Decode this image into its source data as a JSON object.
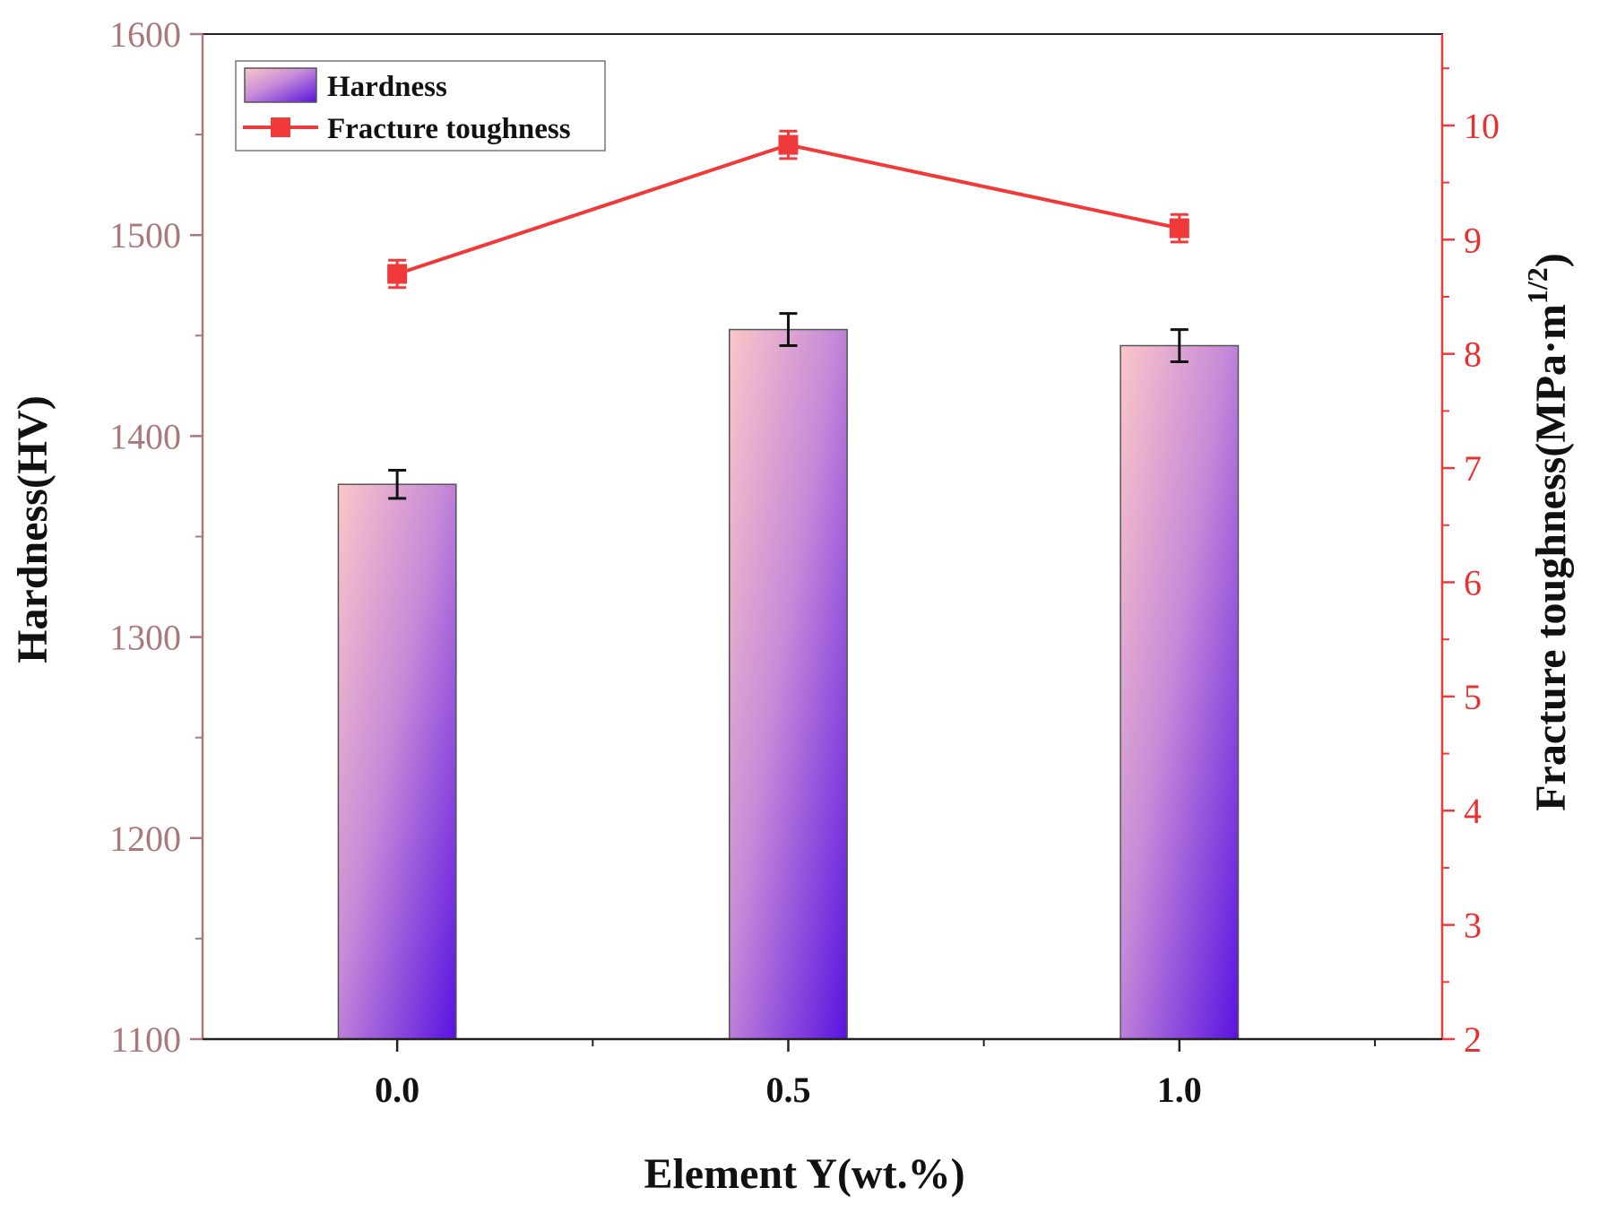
{
  "chart_data": {
    "type": "bar+line",
    "title": "",
    "xlabel": "Element Y(wt.%)",
    "ylabel_left": "Hardness(HV)",
    "ylabel_right": "Fracture toughness(MPa·m",
    "ylabel_right_sup": "1/2",
    "ylabel_right_close": ")",
    "categories": [
      "0.0",
      "0.5",
      "1.0"
    ],
    "ylim_left": [
      1100,
      1600
    ],
    "yticks_left": [
      "1100",
      "1200",
      "1300",
      "1400",
      "1500",
      "1600"
    ],
    "ylim_right": [
      2,
      10.8
    ],
    "yticks_right": [
      "2",
      "3",
      "4",
      "5",
      "6",
      "7",
      "8",
      "9",
      "10"
    ],
    "legend_position": "top-left",
    "series": [
      {
        "name": "Hardness",
        "type": "bar",
        "axis": "left",
        "values": [
          1376,
          1453,
          1445
        ],
        "errors": [
          7,
          8,
          8
        ]
      },
      {
        "name": "Fracture toughness",
        "type": "line",
        "axis": "right",
        "values": [
          8.7,
          9.83,
          9.1
        ],
        "errors": [
          0.12,
          0.12,
          0.12
        ]
      }
    ],
    "colors": {
      "bar_light": "#f9c4c8",
      "bar_dark": "#5a12e0",
      "line": "#f03a3a",
      "left_axis": "#a8787a",
      "right_axis": "#f03a3a",
      "frame": "#222222"
    }
  }
}
